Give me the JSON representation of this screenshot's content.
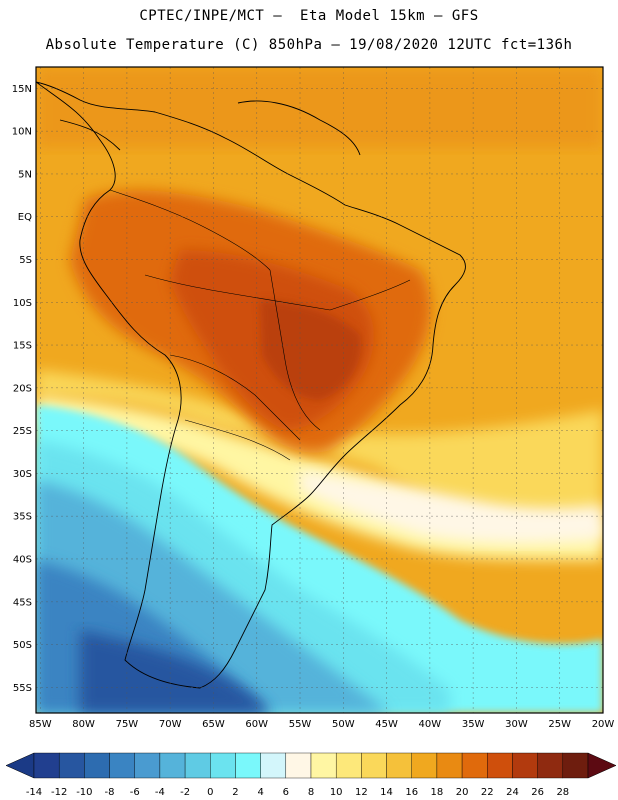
{
  "header": {
    "line1": "CPTEC/INPE/MCT –  Eta Model 15km – GFS",
    "line2": "Absolute Temperature (C) 850hPa – 19/08/2020 12UTC fct=136h"
  },
  "map": {
    "lat_labels": [
      "15N",
      "10N",
      "5N",
      "EQ",
      "5S",
      "10S",
      "15S",
      "20S",
      "25S",
      "30S",
      "35S",
      "40S",
      "45S",
      "50S",
      "55S"
    ],
    "lat_values": [
      15,
      10,
      5,
      0,
      -5,
      -10,
      -15,
      -20,
      -25,
      -30,
      -35,
      -40,
      -45,
      -50,
      -55
    ],
    "lon_labels": [
      "85W",
      "80W",
      "75W",
      "70W",
      "65W",
      "60W",
      "55W",
      "50W",
      "45W",
      "40W",
      "35W",
      "30W",
      "25W",
      "20W"
    ],
    "lon_values": [
      -85,
      -80,
      -75,
      -70,
      -65,
      -60,
      -55,
      -50,
      -45,
      -40,
      -35,
      -30,
      -25,
      -20
    ],
    "lon_range": [
      -85.5,
      -20
    ],
    "lat_range": [
      -58,
      17.5
    ]
  },
  "colorbar": {
    "labels": [
      "-14",
      "-12",
      "-10",
      "-8",
      "-6",
      "-4",
      "-2",
      "0",
      "2",
      "4",
      "6",
      "8",
      "10",
      "12",
      "14",
      "16",
      "18",
      "20",
      "22",
      "24",
      "26",
      "28"
    ],
    "colors": [
      "#213f8f",
      "#2756a0",
      "#2d6cb0",
      "#3a84c2",
      "#4a9bd0",
      "#55b3da",
      "#5fcbe4",
      "#6be3ef",
      "#7af8fb",
      "#d3f6fb",
      "#fff7e6",
      "#fff6a3",
      "#fde87a",
      "#fad85a",
      "#f5c13a",
      "#f0a81f",
      "#e98a12",
      "#e06a0c",
      "#cf4f0c",
      "#b23a0e",
      "#8f2a10",
      "#6e1d0e"
    ],
    "under_color": "#1b3a86",
    "over_color": "#5c0a12"
  }
}
